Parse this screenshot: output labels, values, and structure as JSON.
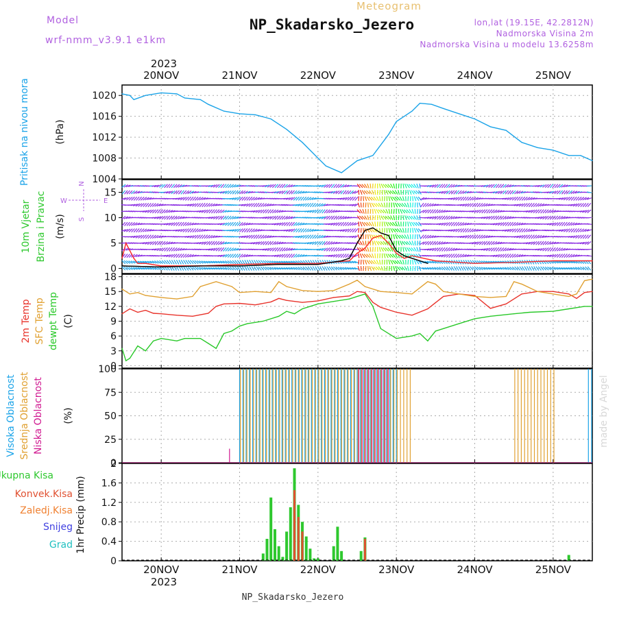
{
  "header": {
    "model_label": "Model",
    "model_value": "wrf-nmm_v3.9.1 e1km",
    "title": "Meteogram",
    "station": "NP_Skadarsko_Jezero",
    "lonlat": "lon,lat (19.15E, 42.2812N)",
    "elevation": "Nadmorska Visina 2m",
    "model_elevation": "Nadmorska Visina u modelu 13.6258m",
    "footer_station": "NP_Skadarsko_Jezero",
    "watermark": "made by Angel"
  },
  "time_axis": {
    "year": "2023",
    "days": [
      "20NOV",
      "21NOV",
      "22NOV",
      "23NOV",
      "24NOV",
      "25NOV"
    ],
    "day_index": [
      0,
      1,
      2,
      3,
      4,
      5
    ],
    "range_days": [
      -0.5,
      5.5
    ]
  },
  "chart_data": [
    {
      "type": "line",
      "panel": "pressure",
      "ylabel_lines": [
        "Pritisak na nivou mora"
      ],
      "unit": "(hPa)",
      "ylim": [
        1004,
        1022
      ],
      "yticks": [
        1004,
        1008,
        1012,
        1016,
        1020
      ],
      "grid": true,
      "series": [
        {
          "color": "#1aa3e8",
          "x": [
            -0.5,
            -0.4,
            -0.35,
            -0.2,
            0.0,
            0.2,
            0.3,
            0.5,
            0.6,
            0.8,
            1.0,
            1.2,
            1.4,
            1.6,
            1.8,
            2.0,
            2.1,
            2.3,
            2.5,
            2.7,
            2.9,
            3.0,
            3.1,
            3.2,
            3.3,
            3.45,
            3.6,
            3.8,
            4.0,
            4.2,
            4.4,
            4.6,
            4.8,
            5.0,
            5.2,
            5.35,
            5.5
          ],
          "y": [
            1020.3,
            1020.0,
            1019.2,
            1020.0,
            1020.5,
            1020.3,
            1019.5,
            1019.2,
            1018.3,
            1017.0,
            1016.5,
            1016.3,
            1015.5,
            1013.5,
            1011.0,
            1008.0,
            1006.5,
            1005.2,
            1007.5,
            1008.5,
            1012.5,
            1015.0,
            1016.0,
            1017.0,
            1018.5,
            1018.3,
            1017.5,
            1016.5,
            1015.5,
            1014.0,
            1013.3,
            1011.0,
            1010.0,
            1009.5,
            1008.5,
            1008.5,
            1007.5
          ]
        }
      ]
    },
    {
      "type": "line",
      "panel": "wind",
      "ylabel_lines": [
        "10m Vjetar",
        "Brzina i Pravac"
      ],
      "unit": "(m/s)",
      "ylim": [
        -1,
        17.5
      ],
      "yticks": [
        0,
        5,
        10,
        15
      ],
      "compass": [
        "N",
        "W",
        "E",
        "S"
      ],
      "grid": true,
      "series": [
        {
          "color": "#ff2a2a",
          "x": [
            -0.5,
            -0.45,
            -0.35,
            -0.3,
            -0.2,
            0.0,
            0.5,
            1.0,
            1.5,
            2.0,
            2.4,
            2.5,
            2.6,
            2.7,
            2.8,
            2.9,
            3.0,
            3.1,
            3.2,
            3.5,
            4.0,
            4.5,
            5.0,
            5.5
          ],
          "y": [
            2.0,
            5.0,
            2.0,
            1.0,
            1.0,
            0.5,
            0.5,
            0.8,
            1.0,
            1.0,
            1.5,
            3.0,
            4.0,
            6.0,
            6.5,
            5.0,
            3.0,
            2.0,
            2.5,
            1.5,
            1.0,
            1.2,
            1.5,
            1.5
          ]
        },
        {
          "color": "#000000",
          "x": [
            -0.5,
            0.0,
            0.5,
            1.0,
            1.5,
            2.0,
            2.3,
            2.4,
            2.5,
            2.6,
            2.7,
            2.8,
            2.9,
            3.0,
            3.1,
            3.2,
            3.3,
            3.4
          ],
          "y": [
            0.5,
            0.3,
            0.5,
            0.5,
            0.8,
            0.8,
            1.5,
            2.0,
            5.0,
            7.5,
            8.0,
            7.0,
            6.5,
            3.5,
            2.5,
            2.0,
            1.5,
            1.0
          ]
        }
      ]
    },
    {
      "type": "line",
      "panel": "temperature",
      "ylabel_lines": [
        "2m Temp",
        "SFC Temp",
        "dewpt Temp"
      ],
      "unit": "(C)",
      "ylim": [
        -0.5,
        18.5
      ],
      "yticks": [
        0,
        3,
        6,
        9,
        12,
        15,
        18
      ],
      "grid": true,
      "series": [
        {
          "color": "#e8322a",
          "x": [
            -0.5,
            -0.4,
            -0.3,
            -0.2,
            -0.1,
            0.0,
            0.2,
            0.4,
            0.6,
            0.7,
            0.8,
            1.0,
            1.2,
            1.4,
            1.5,
            1.6,
            1.8,
            2.0,
            2.2,
            2.4,
            2.5,
            2.6,
            2.7,
            2.8,
            3.0,
            3.2,
            3.4,
            3.6,
            3.8,
            4.0,
            4.2,
            4.4,
            4.6,
            4.8,
            5.0,
            5.2,
            5.3,
            5.4,
            5.5
          ],
          "y": [
            10.5,
            11.5,
            10.8,
            11.2,
            10.6,
            10.5,
            10.2,
            10.0,
            10.6,
            12.0,
            12.5,
            12.6,
            12.3,
            12.9,
            13.6,
            13.2,
            12.8,
            13.1,
            13.8,
            14.1,
            15.0,
            14.8,
            12.8,
            11.8,
            10.8,
            10.2,
            11.5,
            14.0,
            14.5,
            14.2,
            11.6,
            12.5,
            14.5,
            15.0,
            15.0,
            14.5,
            13.6,
            14.8,
            15.0
          ]
        },
        {
          "color": "#e0a030",
          "x": [
            -0.5,
            -0.4,
            -0.3,
            -0.2,
            0.0,
            0.2,
            0.4,
            0.5,
            0.7,
            0.9,
            1.0,
            1.2,
            1.4,
            1.5,
            1.6,
            1.8,
            2.0,
            2.2,
            2.4,
            2.5,
            2.6,
            2.8,
            3.0,
            3.2,
            3.4,
            3.5,
            3.6,
            3.8,
            4.0,
            4.2,
            4.4,
            4.5,
            4.6,
            4.8,
            5.0,
            5.2,
            5.3,
            5.4,
            5.5
          ],
          "y": [
            15.5,
            14.5,
            14.8,
            14.2,
            13.8,
            13.5,
            14.0,
            16.0,
            17.0,
            16.0,
            14.8,
            15.0,
            14.8,
            17.0,
            16.0,
            15.2,
            15.0,
            15.2,
            16.5,
            17.3,
            16.0,
            15.0,
            14.8,
            14.5,
            17.0,
            16.5,
            15.0,
            14.5,
            14.0,
            13.8,
            14.0,
            17.0,
            16.5,
            15.0,
            14.5,
            14.0,
            14.5,
            17.2,
            17.5
          ]
        },
        {
          "color": "#28c828",
          "x": [
            -0.5,
            -0.45,
            -0.4,
            -0.3,
            -0.2,
            -0.1,
            0.0,
            0.2,
            0.3,
            0.5,
            0.6,
            0.7,
            0.8,
            0.9,
            1.0,
            1.1,
            1.3,
            1.5,
            1.6,
            1.7,
            1.8,
            1.9,
            2.0,
            2.2,
            2.4,
            2.5,
            2.6,
            2.7,
            2.8,
            3.0,
            3.2,
            3.3,
            3.4,
            3.5,
            3.6,
            3.8,
            4.0,
            4.2,
            4.5,
            4.7,
            5.0,
            5.2,
            5.4,
            5.5
          ],
          "y": [
            3.5,
            1.0,
            1.5,
            4.0,
            3.0,
            5.0,
            5.5,
            5.0,
            5.5,
            5.5,
            4.5,
            3.5,
            6.5,
            7.0,
            8.0,
            8.5,
            9.0,
            10.0,
            11.0,
            10.5,
            11.5,
            12.0,
            12.5,
            13.0,
            13.5,
            14.0,
            14.5,
            12.0,
            7.5,
            5.5,
            6.0,
            6.5,
            5.0,
            7.0,
            7.5,
            8.5,
            9.5,
            10.0,
            10.5,
            10.8,
            11.0,
            11.5,
            12.0,
            12.0
          ]
        }
      ]
    },
    {
      "type": "bar",
      "panel": "cloud_cover",
      "ylabel_lines": [
        "Visoka Oblacnost",
        "Srednja Oblacnost",
        "Niska Oblacnost"
      ],
      "unit": "(%)",
      "ylim": [
        0,
        100
      ],
      "yticks": [
        0,
        25,
        50,
        75,
        100
      ],
      "grid": true,
      "series": [
        {
          "color": "#1aa3e8",
          "spans": [
            [
              1.0,
              3.0,
              100
            ],
            [
              5.45,
              5.5,
              100
            ]
          ]
        },
        {
          "color": "#e0a030",
          "spans": [
            [
              1.0,
              3.2,
              100
            ],
            [
              4.5,
              5.0,
              100
            ]
          ]
        },
        {
          "color": "#d01890",
          "spans": [
            [
              0.85,
              0.87,
              15
            ],
            [
              2.5,
              2.9,
              100
            ]
          ]
        }
      ]
    },
    {
      "type": "bar",
      "panel": "precipitation",
      "ylabel_lines": [
        "1hr Precip"
      ],
      "unit": "(mm)",
      "legend": [
        "Ukupna Kisa",
        "Konvek.Kisa",
        "Zaledj.Kisa",
        "Snijeg",
        "Grad"
      ],
      "ylim": [
        0,
        2
      ],
      "yticks": [
        0,
        0.4,
        0.8,
        1.2,
        1.6,
        2
      ],
      "grid": true,
      "series": [
        {
          "name": "Ukupna Kisa",
          "color": "#2ec82e",
          "x": [
            1.3,
            1.35,
            1.4,
            1.45,
            1.5,
            1.55,
            1.6,
            1.65,
            1.7,
            1.75,
            1.8,
            1.85,
            1.9,
            1.95,
            2.0,
            2.2,
            2.25,
            2.3,
            2.55,
            2.6,
            5.2
          ],
          "y": [
            0.15,
            0.45,
            1.3,
            0.65,
            0.3,
            0.08,
            0.6,
            1.1,
            1.9,
            1.15,
            0.8,
            0.5,
            0.25,
            0.05,
            0.05,
            0.3,
            0.7,
            0.2,
            0.2,
            0.48,
            0.12
          ]
        },
        {
          "name": "Konvek.Kisa",
          "color": "#e05030",
          "x": [
            1.7,
            1.75,
            1.8,
            2.6
          ],
          "y": [
            1.45,
            0.9,
            0.6,
            0.45
          ]
        }
      ]
    }
  ]
}
